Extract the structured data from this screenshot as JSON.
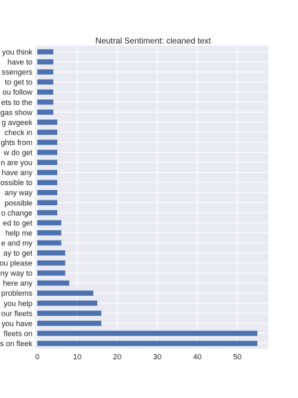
{
  "chart_data": {
    "type": "bar",
    "orientation": "horizontal",
    "title": "Neutral Sentiment: cleaned text",
    "xlabel": "",
    "ylabel": "",
    "xlim": [
      0,
      57.75
    ],
    "xticks": [
      0,
      10,
      20,
      30,
      40,
      50
    ],
    "grid": true,
    "legend": "none",
    "bar_color": "#4c72b0",
    "background_color": "#eaeaf2",
    "categories": [
      "s on fleek",
      "fleets on",
      "you have",
      "our fleets",
      "you help",
      "problems",
      "here any",
      "ny way to",
      "ou please",
      "ay to get",
      "e and my",
      "help me",
      "ed to get",
      "o change",
      "possible",
      "any way",
      "ossible to",
      "have any",
      "n are you",
      "w do get",
      "ghts from",
      "check in",
      "g avgeek",
      "gas show",
      "ets to the",
      "ou follow",
      "to get to",
      "ssengers",
      "have to",
      "you think"
    ],
    "values": [
      55,
      55,
      16,
      16,
      15,
      14,
      8,
      7,
      7,
      7,
      6,
      6,
      6,
      5,
      5,
      5,
      5,
      5,
      5,
      5,
      5,
      5,
      5,
      4,
      4,
      4,
      4,
      4,
      4,
      4
    ]
  }
}
